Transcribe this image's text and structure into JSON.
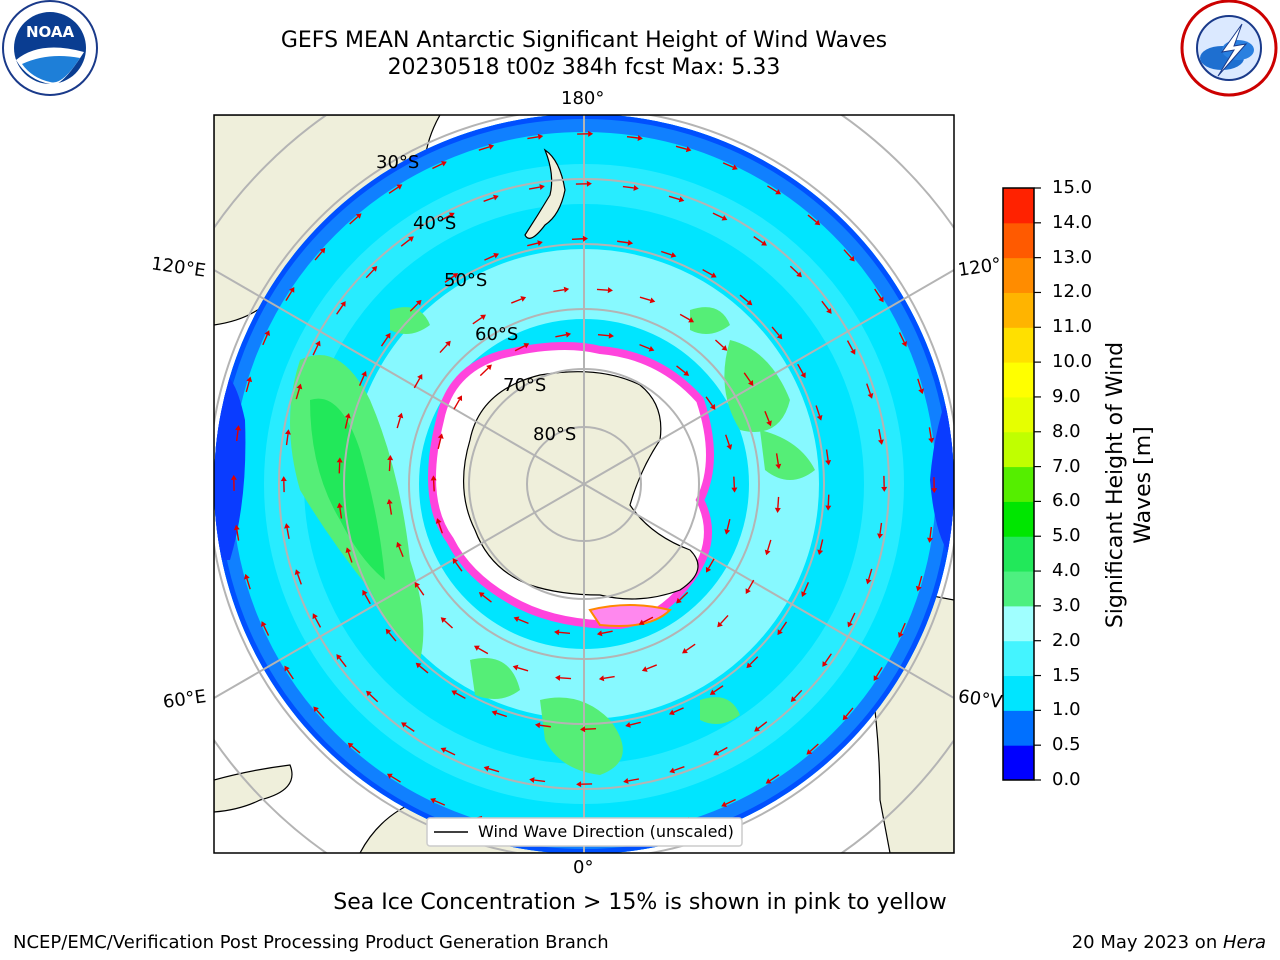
{
  "title": {
    "line1": "GEFS MEAN Antarctic Significant Height of Wind Waves",
    "line2": "20230518 t00z 384h fcst   Max: 5.33"
  },
  "map": {
    "longitude_labels": {
      "top": "180°",
      "bottom": "0°",
      "upper_left": "120°E",
      "upper_right": "120°",
      "lower_left": "60°E",
      "lower_right": "60°V"
    },
    "latitude_labels": [
      "30°S",
      "40°S",
      "50°S",
      "60°S",
      "70°S",
      "80°S"
    ],
    "legend_label": "Wind Wave Direction (unscaled)",
    "colors": {
      "land": "#efefdb",
      "ocean_main": "#00e5ff",
      "ocean_light": "#9ffdff",
      "ocean_dark": "#0078ff",
      "green": "#55ee77",
      "ice_pink": "#ff44dd",
      "arrow": "#e00000"
    }
  },
  "colorbar": {
    "label_line1": "Significant Height of Wind",
    "label_line2": "Waves [m]",
    "ticks": [
      "0.0",
      "0.5",
      "1.0",
      "1.5",
      "2.0",
      "3.0",
      "4.0",
      "5.0",
      "6.0",
      "7.0",
      "8.0",
      "9.0",
      "10.0",
      "11.0",
      "12.0",
      "13.0",
      "14.0",
      "15.0"
    ],
    "colors": [
      "#0000ff",
      "#0070ff",
      "#00e5ff",
      "#44f4ff",
      "#a0ffff",
      "#4df080",
      "#22e85a",
      "#00e600",
      "#55ee00",
      "#c0ff00",
      "#e6ff00",
      "#ffff00",
      "#ffe000",
      "#ffb400",
      "#ff8c00",
      "#ff5a00",
      "#ff2200"
    ]
  },
  "note": "Sea Ice Concentration > 15% is shown in pink to yellow",
  "footer": {
    "left": "NCEP/EMC/Verification Post Processing Product Generation Branch",
    "right_prefix": "20 May 2023 on ",
    "right_system": "Hera"
  },
  "logos": {
    "left": "NOAA",
    "right": "NATIONAL WEATHER SERVICE"
  }
}
